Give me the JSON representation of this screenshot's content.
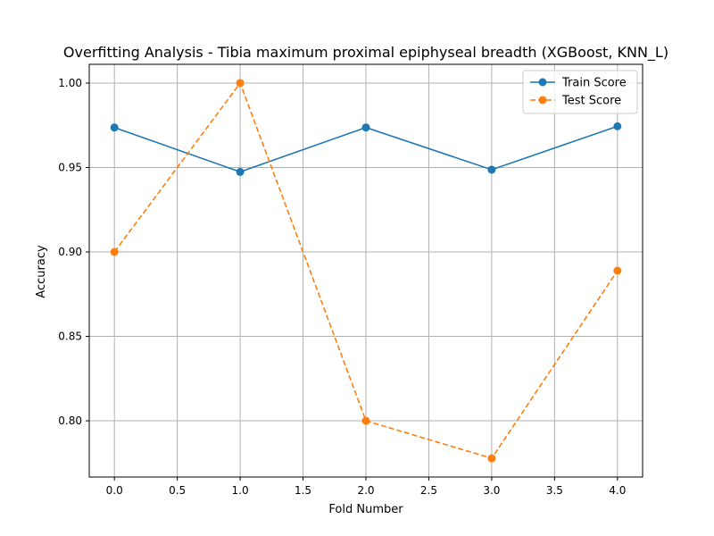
{
  "chart_data": {
    "type": "line",
    "title": "Overfitting Analysis - Tibia maximum proximal epiphyseal breadth (XGBoost, KNN_L)",
    "xlabel": "Fold Number",
    "ylabel": "Accuracy",
    "x": [
      0,
      1,
      2,
      3,
      4
    ],
    "xlim": [
      -0.2,
      4.2
    ],
    "ylim": [
      0.7667,
      1.0111
    ],
    "xticks": [
      "0.0",
      "0.5",
      "1.0",
      "1.5",
      "2.0",
      "2.5",
      "3.0",
      "3.5",
      "4.0"
    ],
    "yticks": [
      "0.80",
      "0.85",
      "0.90",
      "0.95",
      "1.00"
    ],
    "grid": true,
    "legend_position": "top-right",
    "series": [
      {
        "name": "Train Score",
        "values": [
          0.9737,
          0.9474,
          0.9737,
          0.9487,
          0.9744
        ],
        "color": "#1f77b4",
        "linestyle": "solid",
        "marker": "circle"
      },
      {
        "name": "Test Score",
        "values": [
          0.9,
          1.0,
          0.8,
          0.7778,
          0.8889
        ],
        "color": "#ff7f0e",
        "linestyle": "dashed",
        "marker": "circle"
      }
    ]
  }
}
